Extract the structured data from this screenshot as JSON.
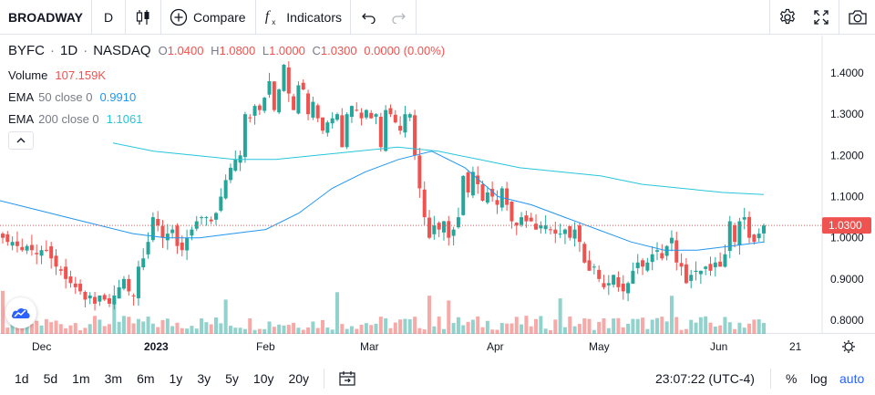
{
  "toolbar": {
    "symbol": "BROADWAY",
    "interval": "D",
    "compare_label": "Compare",
    "indicators_label": "Indicators",
    "icons": [
      "candles-icon",
      "plus-circle-icon",
      "fx-icon",
      "undo-icon",
      "redo-icon",
      "gear-icon",
      "fullscreen-icon",
      "camera-icon"
    ]
  },
  "legend": {
    "symbol": "BYFC",
    "sep1": "·",
    "interval": "1D",
    "sep2": "·",
    "exchange": "NASDAQ",
    "ohlc": {
      "o_label": "O",
      "o": "1.0400",
      "h_label": "H",
      "h": "1.0800",
      "l_label": "L",
      "l": "1.0000",
      "c_label": "C",
      "c": "1.0300",
      "change": "0.0000 (0.00%)"
    },
    "volume": {
      "label": "Volume",
      "value": "107.159K"
    },
    "ema50": {
      "label": "EMA",
      "params": "50 close 0",
      "value": "0.9910"
    },
    "ema200": {
      "label": "EMA",
      "params": "200 close 0",
      "value": "1.1061"
    }
  },
  "price_axis": {
    "labels": [
      "1.4000",
      "1.3000",
      "1.2000",
      "1.1000",
      "1.0000",
      "0.9000",
      "0.8000"
    ],
    "current_price": "1.0300"
  },
  "time_axis": {
    "labels": [
      "Dec",
      "2023",
      "Feb",
      "Mar",
      "Apr",
      "May",
      "Jun",
      "21"
    ]
  },
  "bottom": {
    "ranges": [
      "1d",
      "5d",
      "1m",
      "3m",
      "6m",
      "1y",
      "3y",
      "5y",
      "10y",
      "20y"
    ],
    "time": "23:07:22 (UTC-4)",
    "percent": "%",
    "log": "log",
    "auto": "auto"
  },
  "colors": {
    "up": "#26a69a",
    "down": "#ef5350",
    "ema50": "#2196f3",
    "ema200": "#26c6da",
    "accent": "#2962ff"
  },
  "chart_data": {
    "type": "candlestick",
    "ylim": [
      0.77,
      1.46
    ],
    "x_ticks": [
      "Dec",
      "2023",
      "Feb",
      "Mar",
      "Apr",
      "May",
      "Jun",
      "21"
    ],
    "close_series_approx": [
      1.0,
      0.99,
      0.99,
      0.98,
      0.97,
      0.98,
      0.97,
      0.96,
      0.97,
      0.97,
      0.95,
      0.93,
      0.92,
      0.9,
      0.89,
      0.88,
      0.87,
      0.85,
      0.86,
      0.84,
      0.86,
      0.85,
      0.84,
      0.86,
      0.88,
      0.9,
      0.87,
      0.86,
      0.93,
      0.95,
      0.99,
      1.05,
      1.03,
      1.0,
      1.01,
      1.02,
      0.98,
      0.97,
      1.0,
      1.02,
      1.04,
      1.05,
      1.05,
      1.04,
      1.06,
      1.1,
      1.14,
      1.17,
      1.19,
      1.2,
      1.3,
      1.29,
      1.32,
      1.31,
      1.34,
      1.38,
      1.31,
      1.36,
      1.42,
      1.35,
      1.31,
      1.37,
      1.36,
      1.3,
      1.33,
      1.29,
      1.26,
      1.28,
      1.29,
      1.3,
      1.22,
      1.3,
      1.32,
      1.31,
      1.29,
      1.31,
      1.29,
      1.3,
      1.22,
      1.31,
      1.3,
      1.28,
      1.26,
      1.3,
      1.3,
      1.2,
      1.12,
      1.05,
      1.0,
      1.03,
      1.02,
      1.04,
      1.0,
      1.02,
      1.05,
      1.15,
      1.11,
      1.16,
      1.13,
      1.09,
      1.11,
      1.1,
      1.08,
      1.12,
      1.08,
      1.04,
      1.03,
      1.05,
      1.04,
      1.04,
      1.02,
      1.03,
      1.03,
      1.02,
      1.01,
      1.01,
      1.02,
      1.0,
      1.02,
      0.99,
      0.94,
      0.92,
      0.93,
      0.9,
      0.88,
      0.89,
      0.91,
      0.88,
      0.87,
      0.89,
      0.92,
      0.94,
      0.93,
      0.94,
      0.96,
      0.97,
      0.95,
      0.98,
      1.0,
      0.94,
      0.93,
      0.89,
      0.91,
      0.92,
      0.92,
      0.93,
      0.92,
      0.94,
      0.93,
      0.96,
      1.04,
      0.99,
      1.04,
      1.05,
      1.0,
      0.99,
      1.01,
      1.03
    ],
    "ema50_approx": [
      1.09,
      1.07,
      1.05,
      1.03,
      1.01,
      1.0,
      1.0,
      1.01,
      1.02,
      1.06,
      1.12,
      1.16,
      1.19,
      1.21,
      1.17,
      1.1,
      1.08,
      1.05,
      1.02,
      0.99,
      0.97,
      0.97,
      0.98,
      0.99
    ],
    "ema200_approx": [
      1.23,
      1.21,
      1.2,
      1.19,
      1.19,
      1.2,
      1.21,
      1.22,
      1.21,
      1.19,
      1.17,
      1.16,
      1.15,
      1.13,
      1.12,
      1.11,
      1.105
    ],
    "last_price": 1.03
  }
}
